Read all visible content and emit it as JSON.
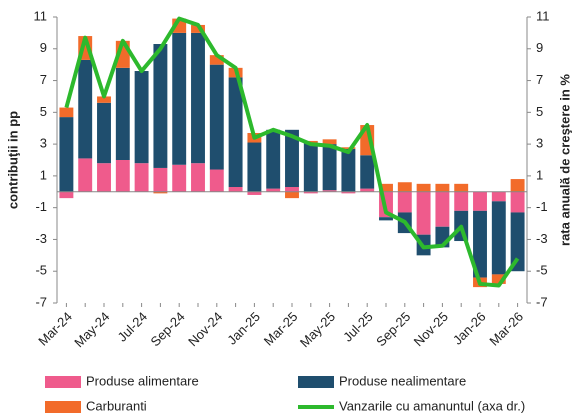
{
  "chart_data": {
    "type": "bar",
    "y_label": "contribuţii in pp",
    "y2_label": "rata anuală de creştere in %",
    "categories": [
      "Mar-24",
      null,
      "May-24",
      null,
      "Jul-24",
      null,
      "Sep-24",
      null,
      "Nov-24",
      null,
      "Jan-25",
      null,
      "Mar-25",
      null,
      "May-25",
      null,
      "Jul-25",
      null,
      "Sep-25",
      null,
      "Nov-25",
      null,
      "Jan-26",
      null,
      "Mar-26"
    ],
    "series": [
      {
        "name": "Produse alimentare",
        "color": "#ef5b8c",
        "values": [
          -0.4,
          2.1,
          1.8,
          2.0,
          1.8,
          1.5,
          1.7,
          1.8,
          1.4,
          0.3,
          -0.2,
          0.2,
          0.3,
          -0.1,
          0.1,
          -0.1,
          0.2,
          -1.6,
          -1.3,
          -2.7,
          -2.2,
          -1.2,
          -1.2,
          -0.6,
          -1.3
        ]
      },
      {
        "name": "Produse nealimentare",
        "color": "#1f4e6e",
        "values": [
          4.7,
          6.2,
          3.8,
          5.8,
          5.8,
          7.8,
          8.3,
          8.2,
          6.6,
          6.9,
          3.1,
          3.7,
          3.6,
          3.1,
          2.9,
          2.7,
          2.1,
          -0.2,
          -1.3,
          -1.3,
          -1.3,
          -1.9,
          -4.2,
          -4.6,
          -3.7
        ]
      },
      {
        "name": "Carburanti",
        "color": "#f26b2a",
        "values": [
          0.6,
          1.5,
          0.4,
          1.7,
          0,
          -0.1,
          0.9,
          0.5,
          0.6,
          0.6,
          0.6,
          0,
          -0.4,
          0.1,
          0.3,
          0.1,
          1.9,
          0.5,
          0.6,
          0.5,
          0.5,
          0.5,
          -0.6,
          -0.6,
          0.8
        ]
      },
      {
        "name": "Vanzarile cu amanuntul (axa dr.)",
        "color": "#2db92d",
        "type": "line",
        "axis": "y2",
        "values": [
          5.3,
          9.7,
          6.0,
          9.5,
          7.6,
          9.0,
          10.9,
          10.5,
          8.6,
          7.8,
          3.4,
          3.9,
          3.5,
          3.0,
          2.9,
          2.5,
          4.2,
          -1.3,
          -1.9,
          -3.5,
          -3.4,
          -2.2,
          -5.8,
          -5.9,
          -4.2
        ]
      }
    ],
    "ylim": [
      -7,
      11
    ],
    "yticks": [
      -7,
      -5,
      -3,
      -1,
      1,
      3,
      5,
      7,
      9,
      11
    ],
    "y2lim": [
      -7,
      11
    ],
    "y2ticks": [
      -7,
      -5,
      -3,
      -1,
      1,
      3,
      5,
      7,
      9,
      11
    ],
    "legend": "bottom"
  }
}
